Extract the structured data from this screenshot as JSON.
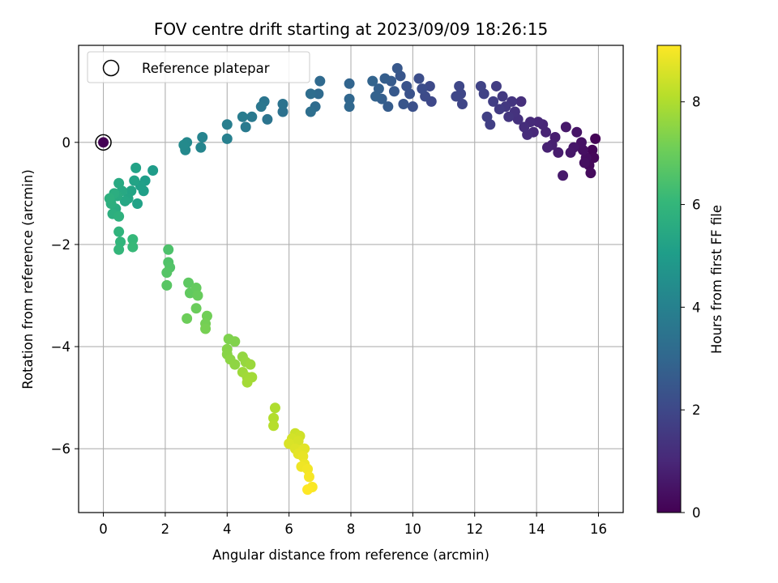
{
  "chart_data": {
    "type": "scatter",
    "title": "FOV centre drift starting at 2023/09/09 18:26:15",
    "xlabel": "Angular distance from reference (arcmin)",
    "ylabel": "Rotation from reference (arcmin)",
    "xlim": [
      -0.8,
      16.8
    ],
    "ylim": [
      -7.25,
      1.9
    ],
    "xticks": [
      0,
      2,
      4,
      6,
      8,
      10,
      12,
      14,
      16
    ],
    "yticks": [
      -6,
      -4,
      -2,
      0
    ],
    "grid": true,
    "legend": {
      "placement": "top-left",
      "entries": [
        "Reference platepar"
      ]
    },
    "reference_point": {
      "x": 0,
      "y": 0
    },
    "colorbar": {
      "label": "Hours from first FF file",
      "colormap": "viridis",
      "min": 0,
      "max": 9.1,
      "ticks": [
        0,
        2,
        4,
        6,
        8
      ]
    },
    "colormap_stops": [
      "#440154",
      "#482878",
      "#3e4989",
      "#31688e",
      "#26828e",
      "#1f9e89",
      "#35b779",
      "#6ece58",
      "#b5de2b",
      "#fde725"
    ],
    "series": [
      {
        "values": [
          {
            "x": 0.0,
            "y": 0.0,
            "t": 0.0
          },
          {
            "x": 15.9,
            "y": 0.07,
            "t": 0.05
          },
          {
            "x": 15.8,
            "y": -0.15,
            "t": 0.1
          },
          {
            "x": 15.85,
            "y": -0.3,
            "t": 0.15
          },
          {
            "x": 15.7,
            "y": -0.45,
            "t": 0.2
          },
          {
            "x": 15.75,
            "y": -0.6,
            "t": 0.25
          },
          {
            "x": 15.6,
            "y": -0.3,
            "t": 0.3
          },
          {
            "x": 15.55,
            "y": -0.4,
            "t": 0.35
          },
          {
            "x": 15.5,
            "y": -0.15,
            "t": 0.4
          },
          {
            "x": 15.45,
            "y": 0.0,
            "t": 0.45
          },
          {
            "x": 15.3,
            "y": 0.2,
            "t": 0.5
          },
          {
            "x": 15.2,
            "y": -0.1,
            "t": 0.55
          },
          {
            "x": 15.1,
            "y": -0.2,
            "t": 0.6
          },
          {
            "x": 14.95,
            "y": 0.3,
            "t": 0.62
          },
          {
            "x": 14.85,
            "y": -0.65,
            "t": 0.65
          },
          {
            "x": 14.7,
            "y": -0.2,
            "t": 0.7
          },
          {
            "x": 14.6,
            "y": 0.1,
            "t": 0.75
          },
          {
            "x": 14.5,
            "y": -0.05,
            "t": 0.8
          },
          {
            "x": 14.35,
            "y": -0.1,
            "t": 0.85
          },
          {
            "x": 14.3,
            "y": 0.2,
            "t": 0.9
          },
          {
            "x": 14.2,
            "y": 0.35,
            "t": 0.95
          },
          {
            "x": 14.05,
            "y": 0.4,
            "t": 1.0
          },
          {
            "x": 13.9,
            "y": 0.2,
            "t": 1.05
          },
          {
            "x": 13.8,
            "y": 0.4,
            "t": 1.1
          },
          {
            "x": 13.7,
            "y": 0.15,
            "t": 1.15
          },
          {
            "x": 13.6,
            "y": 0.3,
            "t": 1.2
          },
          {
            "x": 13.5,
            "y": 0.8,
            "t": 1.25
          },
          {
            "x": 13.4,
            "y": 0.45,
            "t": 1.3
          },
          {
            "x": 13.3,
            "y": 0.6,
            "t": 1.35
          },
          {
            "x": 13.2,
            "y": 0.8,
            "t": 1.4
          },
          {
            "x": 13.1,
            "y": 0.5,
            "t": 1.45
          },
          {
            "x": 13.0,
            "y": 0.7,
            "t": 1.5
          },
          {
            "x": 12.9,
            "y": 0.9,
            "t": 1.55
          },
          {
            "x": 12.8,
            "y": 0.65,
            "t": 1.6
          },
          {
            "x": 12.7,
            "y": 1.1,
            "t": 1.65
          },
          {
            "x": 12.6,
            "y": 0.8,
            "t": 1.7
          },
          {
            "x": 12.5,
            "y": 0.35,
            "t": 1.72
          },
          {
            "x": 12.4,
            "y": 0.5,
            "t": 1.75
          },
          {
            "x": 12.3,
            "y": 0.95,
            "t": 1.8
          },
          {
            "x": 12.2,
            "y": 1.1,
            "t": 1.85
          },
          {
            "x": 11.6,
            "y": 0.75,
            "t": 1.9
          },
          {
            "x": 11.55,
            "y": 0.95,
            "t": 1.92
          },
          {
            "x": 11.5,
            "y": 1.1,
            "t": 1.95
          },
          {
            "x": 11.4,
            "y": 0.9,
            "t": 1.97
          },
          {
            "x": 10.6,
            "y": 0.8,
            "t": 2.0
          },
          {
            "x": 10.55,
            "y": 1.1,
            "t": 2.05
          },
          {
            "x": 10.4,
            "y": 0.9,
            "t": 2.1
          },
          {
            "x": 10.3,
            "y": 1.05,
            "t": 2.15
          },
          {
            "x": 10.2,
            "y": 1.25,
            "t": 2.2
          },
          {
            "x": 10.0,
            "y": 0.7,
            "t": 2.25
          },
          {
            "x": 9.9,
            "y": 0.95,
            "t": 2.3
          },
          {
            "x": 9.8,
            "y": 1.1,
            "t": 2.35
          },
          {
            "x": 9.7,
            "y": 0.75,
            "t": 2.4
          },
          {
            "x": 9.6,
            "y": 1.3,
            "t": 2.45
          },
          {
            "x": 9.5,
            "y": 1.45,
            "t": 2.5
          },
          {
            "x": 9.4,
            "y": 1.0,
            "t": 2.55
          },
          {
            "x": 9.3,
            "y": 1.2,
            "t": 2.6
          },
          {
            "x": 9.2,
            "y": 0.7,
            "t": 2.65
          },
          {
            "x": 9.1,
            "y": 1.25,
            "t": 2.7
          },
          {
            "x": 9.0,
            "y": 0.85,
            "t": 2.75
          },
          {
            "x": 8.9,
            "y": 1.05,
            "t": 2.8
          },
          {
            "x": 8.8,
            "y": 0.9,
            "t": 2.85
          },
          {
            "x": 8.7,
            "y": 1.2,
            "t": 2.9
          },
          {
            "x": 7.95,
            "y": 1.15,
            "t": 2.95
          },
          {
            "x": 7.95,
            "y": 0.85,
            "t": 3.0
          },
          {
            "x": 7.95,
            "y": 0.7,
            "t": 3.05
          },
          {
            "x": 7.0,
            "y": 1.2,
            "t": 3.1
          },
          {
            "x": 6.95,
            "y": 0.95,
            "t": 3.15
          },
          {
            "x": 6.85,
            "y": 0.7,
            "t": 3.2
          },
          {
            "x": 6.7,
            "y": 0.95,
            "t": 3.25
          },
          {
            "x": 6.7,
            "y": 0.6,
            "t": 3.3
          },
          {
            "x": 5.8,
            "y": 0.6,
            "t": 3.4
          },
          {
            "x": 5.8,
            "y": 0.75,
            "t": 3.45
          },
          {
            "x": 5.3,
            "y": 0.45,
            "t": 3.5
          },
          {
            "x": 5.2,
            "y": 0.8,
            "t": 3.55
          },
          {
            "x": 5.1,
            "y": 0.7,
            "t": 3.6
          },
          {
            "x": 4.8,
            "y": 0.5,
            "t": 3.7
          },
          {
            "x": 4.6,
            "y": 0.3,
            "t": 3.75
          },
          {
            "x": 4.5,
            "y": 0.5,
            "t": 3.8
          },
          {
            "x": 4.0,
            "y": 0.35,
            "t": 3.9
          },
          {
            "x": 4.0,
            "y": 0.07,
            "t": 3.95
          },
          {
            "x": 3.2,
            "y": 0.1,
            "t": 4.1
          },
          {
            "x": 3.15,
            "y": -0.1,
            "t": 4.15
          },
          {
            "x": 2.7,
            "y": 0.0,
            "t": 4.25
          },
          {
            "x": 2.65,
            "y": -0.15,
            "t": 4.3
          },
          {
            "x": 2.6,
            "y": -0.05,
            "t": 4.35
          },
          {
            "x": 1.6,
            "y": -0.55,
            "t": 5.0
          },
          {
            "x": 1.35,
            "y": -0.75,
            "t": 5.05
          },
          {
            "x": 1.3,
            "y": -0.95,
            "t": 5.1
          },
          {
            "x": 1.2,
            "y": -0.85,
            "t": 5.15
          },
          {
            "x": 1.1,
            "y": -1.2,
            "t": 5.2
          },
          {
            "x": 1.05,
            "y": -0.5,
            "t": 5.22
          },
          {
            "x": 1.0,
            "y": -0.75,
            "t": 5.25
          },
          {
            "x": 0.9,
            "y": -0.95,
            "t": 5.3
          },
          {
            "x": 0.8,
            "y": -1.1,
            "t": 5.35
          },
          {
            "x": 0.7,
            "y": -1.15,
            "t": 5.4
          },
          {
            "x": 0.6,
            "y": -0.95,
            "t": 5.45
          },
          {
            "x": 0.5,
            "y": -0.8,
            "t": 5.5
          },
          {
            "x": 0.45,
            "y": -1.05,
            "t": 5.55
          },
          {
            "x": 0.4,
            "y": -1.3,
            "t": 5.6
          },
          {
            "x": 0.35,
            "y": -1.0,
            "t": 5.65
          },
          {
            "x": 0.3,
            "y": -1.4,
            "t": 5.7
          },
          {
            "x": 0.25,
            "y": -1.2,
            "t": 5.72
          },
          {
            "x": 0.2,
            "y": -1.1,
            "t": 5.75
          },
          {
            "x": 0.5,
            "y": -1.45,
            "t": 5.8
          },
          {
            "x": 0.5,
            "y": -1.75,
            "t": 5.9
          },
          {
            "x": 0.55,
            "y": -1.95,
            "t": 5.95
          },
          {
            "x": 0.5,
            "y": -2.1,
            "t": 6.0
          },
          {
            "x": 0.95,
            "y": -1.9,
            "t": 6.05
          },
          {
            "x": 0.95,
            "y": -2.05,
            "t": 6.1
          },
          {
            "x": 2.1,
            "y": -2.1,
            "t": 6.5
          },
          {
            "x": 2.1,
            "y": -2.35,
            "t": 6.55
          },
          {
            "x": 2.15,
            "y": -2.45,
            "t": 6.6
          },
          {
            "x": 2.05,
            "y": -2.55,
            "t": 6.65
          },
          {
            "x": 2.05,
            "y": -2.8,
            "t": 6.7
          },
          {
            "x": 2.75,
            "y": -2.75,
            "t": 6.8
          },
          {
            "x": 2.8,
            "y": -2.95,
            "t": 6.85
          },
          {
            "x": 3.0,
            "y": -2.85,
            "t": 6.9
          },
          {
            "x": 3.05,
            "y": -3.0,
            "t": 6.95
          },
          {
            "x": 3.0,
            "y": -3.25,
            "t": 7.0
          },
          {
            "x": 2.7,
            "y": -3.45,
            "t": 7.05
          },
          {
            "x": 3.35,
            "y": -3.4,
            "t": 7.1
          },
          {
            "x": 3.3,
            "y": -3.55,
            "t": 7.15
          },
          {
            "x": 3.3,
            "y": -3.65,
            "t": 7.2
          },
          {
            "x": 4.05,
            "y": -3.85,
            "t": 7.3
          },
          {
            "x": 4.25,
            "y": -3.9,
            "t": 7.35
          },
          {
            "x": 4.0,
            "y": -4.05,
            "t": 7.4
          },
          {
            "x": 4.0,
            "y": -4.15,
            "t": 7.45
          },
          {
            "x": 4.1,
            "y": -4.25,
            "t": 7.5
          },
          {
            "x": 4.25,
            "y": -4.35,
            "t": 7.55
          },
          {
            "x": 4.5,
            "y": -4.2,
            "t": 7.6
          },
          {
            "x": 4.6,
            "y": -4.3,
            "t": 7.65
          },
          {
            "x": 4.75,
            "y": -4.35,
            "t": 7.7
          },
          {
            "x": 4.5,
            "y": -4.5,
            "t": 7.75
          },
          {
            "x": 4.65,
            "y": -4.6,
            "t": 7.8
          },
          {
            "x": 4.8,
            "y": -4.6,
            "t": 7.82
          },
          {
            "x": 4.65,
            "y": -4.7,
            "t": 7.85
          },
          {
            "x": 5.55,
            "y": -5.2,
            "t": 8.0
          },
          {
            "x": 5.5,
            "y": -5.4,
            "t": 8.05
          },
          {
            "x": 5.5,
            "y": -5.55,
            "t": 8.1
          },
          {
            "x": 6.2,
            "y": -5.7,
            "t": 8.4
          },
          {
            "x": 6.35,
            "y": -5.75,
            "t": 8.45
          },
          {
            "x": 6.1,
            "y": -5.8,
            "t": 8.5
          },
          {
            "x": 6.3,
            "y": -5.85,
            "t": 8.55
          },
          {
            "x": 6.0,
            "y": -5.9,
            "t": 8.6
          },
          {
            "x": 6.2,
            "y": -6.0,
            "t": 8.65
          },
          {
            "x": 6.4,
            "y": -6.05,
            "t": 8.7
          },
          {
            "x": 6.5,
            "y": -6.0,
            "t": 8.72
          },
          {
            "x": 6.3,
            "y": -6.1,
            "t": 8.75
          },
          {
            "x": 6.45,
            "y": -6.15,
            "t": 8.8
          },
          {
            "x": 6.5,
            "y": -6.3,
            "t": 8.85
          },
          {
            "x": 6.4,
            "y": -6.35,
            "t": 8.9
          },
          {
            "x": 6.6,
            "y": -6.4,
            "t": 8.95
          },
          {
            "x": 6.65,
            "y": -6.55,
            "t": 9.0
          },
          {
            "x": 6.75,
            "y": -6.75,
            "t": 9.05
          },
          {
            "x": 6.6,
            "y": -6.8,
            "t": 9.1
          }
        ]
      }
    ]
  }
}
